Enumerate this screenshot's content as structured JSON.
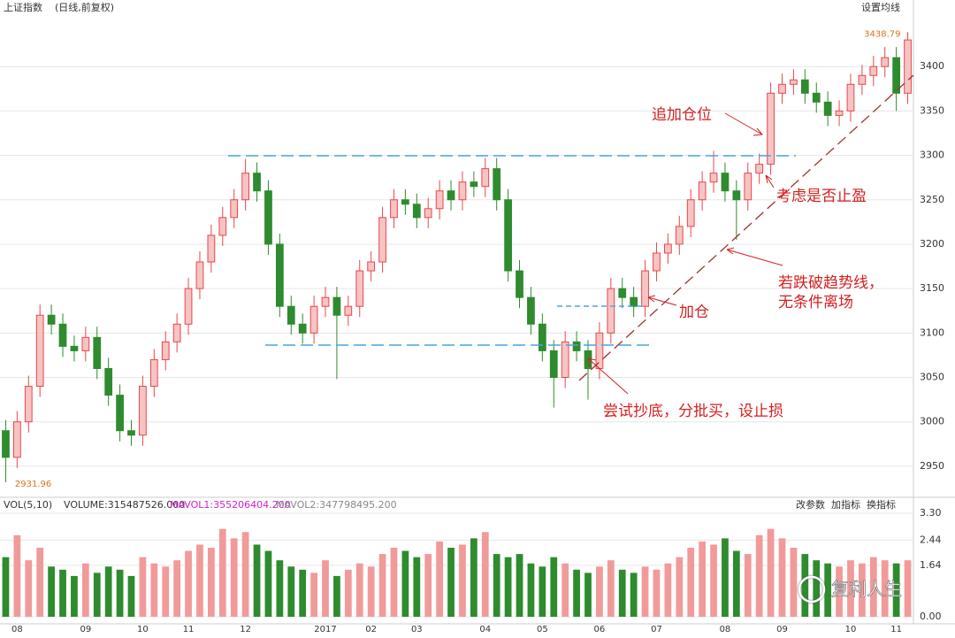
{
  "header": {
    "title": "上证指数",
    "subtitle": "(日线,前复权)",
    "ma_button": "设置均线"
  },
  "volume_header": {
    "name": "VOL(5,10)",
    "volume": "VOLUME:315487526.000",
    "mavol1": "MAVOL1:355206404.200",
    "mavol2": "MAVOL2:347798495.200",
    "buttons": [
      "改参数",
      "加指标",
      "换指标"
    ]
  },
  "annotations": [
    "追加仓位",
    "考虑是否止盈",
    "若跌破趋势线，",
    "无条件离场",
    "加仓",
    "尝试抄底，分批买，设止损"
  ],
  "watermark": "复利人生",
  "chart_data": [
    {
      "type": "candlestick",
      "up_color": "#e8474a",
      "down_color": "#2e8b2e",
      "ylim": [
        2917,
        3455
      ],
      "yticks": [
        2950,
        3000,
        3050,
        3100,
        3150,
        3200,
        3250,
        3300,
        3350,
        3400
      ],
      "grid": true,
      "open": [
        2990,
        2960,
        3000,
        3040,
        3120,
        3110,
        3085,
        3080,
        3095,
        3060,
        3030,
        2990,
        2985,
        3040,
        3070,
        3090,
        3110,
        3150,
        3180,
        3210,
        3230,
        3250,
        3280,
        3260,
        3200,
        3130,
        3110,
        3100,
        3130,
        3140,
        3120,
        3130,
        3170,
        3180,
        3230,
        3250,
        3245,
        3230,
        3240,
        3260,
        3250,
        3270,
        3265,
        3285,
        3250,
        3170,
        3140,
        3110,
        3080,
        3050,
        3090,
        3080,
        3060,
        3100,
        3150,
        3140,
        3130,
        3170,
        3190,
        3200,
        3220,
        3250,
        3270,
        3280,
        3260,
        3250,
        3280,
        3290,
        3370,
        3380,
        3385,
        3370,
        3360,
        3345,
        3350,
        3380,
        3390,
        3400,
        3410,
        3370
      ],
      "high": [
        3002,
        3012,
        3052,
        3132,
        3132,
        3122,
        3097,
        3107,
        3107,
        3072,
        3042,
        3002,
        3052,
        3082,
        3102,
        3122,
        3162,
        3192,
        3222,
        3242,
        3262,
        3296,
        3292,
        3272,
        3212,
        3142,
        3122,
        3142,
        3152,
        3152,
        3142,
        3182,
        3192,
        3242,
        3262,
        3262,
        3257,
        3252,
        3272,
        3272,
        3282,
        3282,
        3297,
        3297,
        3262,
        3182,
        3152,
        3122,
        3092,
        3102,
        3102,
        3092,
        3112,
        3162,
        3162,
        3152,
        3182,
        3202,
        3212,
        3232,
        3262,
        3282,
        3305,
        3292,
        3272,
        3292,
        3302,
        3382,
        3392,
        3397,
        3397,
        3382,
        3372,
        3362,
        3392,
        3402,
        3412,
        3422,
        3422,
        3438.79
      ],
      "low": [
        2931.96,
        2948,
        2988,
        3028,
        3098,
        3073,
        3068,
        3068,
        3048,
        3018,
        2978,
        2973,
        2973,
        3028,
        3058,
        3078,
        3098,
        3138,
        3168,
        3198,
        3218,
        3238,
        3248,
        3188,
        3118,
        3098,
        3088,
        3088,
        3118,
        3048,
        3108,
        3118,
        3158,
        3168,
        3218,
        3233,
        3218,
        3218,
        3228,
        3238,
        3238,
        3253,
        3253,
        3238,
        3158,
        3128,
        3098,
        3068,
        3016,
        3038,
        3068,
        3025,
        3048,
        3088,
        3128,
        3118,
        3118,
        3158,
        3178,
        3188,
        3208,
        3238,
        3258,
        3248,
        3205,
        3238,
        3268,
        3278,
        3358,
        3368,
        3358,
        3348,
        3333,
        3333,
        3338,
        3368,
        3378,
        3388,
        3350,
        3358
      ],
      "close": [
        2960,
        3000,
        3040,
        3120,
        3110,
        3085,
        3080,
        3095,
        3060,
        3030,
        2990,
        2985,
        3040,
        3070,
        3090,
        3110,
        3150,
        3180,
        3210,
        3230,
        3250,
        3280,
        3260,
        3200,
        3130,
        3110,
        3100,
        3130,
        3140,
        3120,
        3130,
        3170,
        3180,
        3230,
        3250,
        3245,
        3230,
        3240,
        3260,
        3250,
        3270,
        3265,
        3285,
        3250,
        3170,
        3140,
        3110,
        3080,
        3050,
        3090,
        3080,
        3060,
        3100,
        3150,
        3140,
        3130,
        3170,
        3190,
        3200,
        3220,
        3250,
        3270,
        3280,
        3260,
        3250,
        3280,
        3290,
        3370,
        3380,
        3385,
        3370,
        3360,
        3345,
        3350,
        3380,
        3390,
        3400,
        3410,
        3370,
        3430
      ]
    },
    {
      "type": "bar",
      "up_color": "#f19a9a",
      "down_color": "#2e8b2e",
      "ylim": [
        0,
        3.3
      ],
      "yticks": [
        {
          "value": 0,
          "label": "0.00"
        },
        1.64,
        2.44,
        {
          "value": 3.3,
          "label": "3.30"
        }
      ],
      "categories": [
        null,
        "08",
        null,
        null,
        null,
        null,
        null,
        "09",
        null,
        null,
        null,
        null,
        "10",
        null,
        null,
        null,
        "11",
        null,
        null,
        null,
        null,
        "12",
        null,
        null,
        null,
        null,
        null,
        null,
        "2017",
        null,
        null,
        null,
        "02",
        null,
        null,
        null,
        "03",
        null,
        null,
        null,
        null,
        null,
        "04",
        null,
        null,
        null,
        null,
        "05",
        null,
        null,
        null,
        null,
        "06",
        null,
        null,
        null,
        null,
        "07",
        null,
        null,
        null,
        null,
        null,
        "08",
        null,
        null,
        null,
        null,
        "09",
        null,
        null,
        null,
        null,
        null,
        "10",
        null,
        null,
        null,
        "11",
        null
      ],
      "values": [
        1.9,
        2.6,
        1.8,
        2.2,
        1.6,
        1.5,
        1.3,
        1.7,
        1.4,
        1.6,
        1.5,
        1.3,
        1.9,
        1.7,
        1.6,
        1.8,
        2.1,
        2.3,
        2.2,
        2.8,
        2.5,
        2.7,
        2.3,
        2.1,
        1.8,
        1.6,
        1.5,
        1.4,
        1.8,
        1.3,
        1.5,
        1.7,
        1.6,
        2.0,
        2.2,
        2.1,
        1.9,
        2.0,
        2.4,
        2.2,
        2.3,
        2.5,
        2.7,
        2.0,
        1.9,
        2.0,
        1.7,
        1.6,
        1.9,
        1.7,
        1.5,
        1.4,
        1.6,
        1.8,
        1.5,
        1.4,
        1.6,
        1.5,
        1.7,
        1.9,
        2.2,
        2.4,
        2.3,
        2.5,
        2.1,
        2.0,
        2.6,
        2.8,
        2.5,
        2.2,
        2.0,
        1.8,
        1.7,
        1.6,
        1.8,
        1.7,
        1.9,
        1.8,
        1.7,
        1.8
      ]
    }
  ]
}
